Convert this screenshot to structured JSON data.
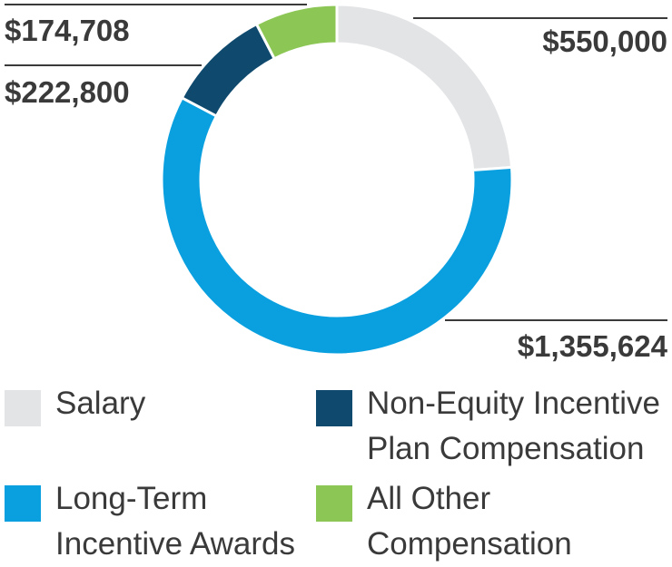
{
  "chart_data": {
    "type": "pie",
    "subtype": "donut",
    "title": "",
    "categories": [
      "Salary",
      "Long-Term Incentive Awards",
      "Non-Equity Incentive Plan Compensation",
      "All Other Compensation"
    ],
    "values": [
      550000,
      1355624,
      222800,
      174708
    ],
    "value_labels": [
      "$550,000",
      "$1,355,624",
      "$222,800",
      "$174,708"
    ],
    "colors": [
      "#e3e4e6",
      "#0aa0e0",
      "#0f4a6e",
      "#8cc755"
    ],
    "start": "top",
    "direction": "clockwise",
    "legend_position": "bottom"
  },
  "legend": {
    "salary": [
      "Salary"
    ],
    "non_equity": [
      "Non-Equity Incentive",
      "Plan Compensation"
    ],
    "long_term": [
      "Long-Term",
      "Incentive Awards"
    ],
    "all_other": [
      "All Other",
      "Compensation"
    ]
  }
}
